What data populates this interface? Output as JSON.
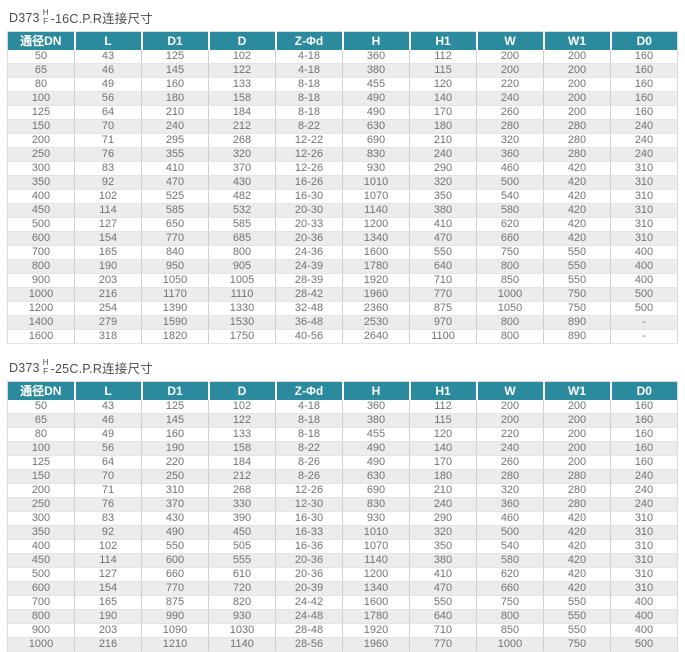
{
  "colors": {
    "header_bg": "#2b8a9d",
    "header_text": "#ffffff",
    "body_text": "#737373",
    "stripe": "#ececec",
    "title_text": "#4d4d4d"
  },
  "tables": [
    {
      "title_prefix": "D373",
      "title_sup": "H",
      "title_sub": "F",
      "title_suffix": "-16C.P.R连接尺寸",
      "columns": [
        "通径DN",
        "L",
        "D1",
        "D",
        "Z-Φd",
        "H",
        "H1",
        "W",
        "W1",
        "D0"
      ],
      "rows": [
        [
          "50",
          "43",
          "125",
          "102",
          "4-18",
          "360",
          "112",
          "200",
          "200",
          "160"
        ],
        [
          "65",
          "46",
          "145",
          "122",
          "4-18",
          "380",
          "115",
          "200",
          "200",
          "160"
        ],
        [
          "80",
          "49",
          "160",
          "133",
          "8-18",
          "455",
          "120",
          "220",
          "200",
          "160"
        ],
        [
          "100",
          "56",
          "180",
          "158",
          "8-18",
          "490",
          "140",
          "240",
          "200",
          "160"
        ],
        [
          "125",
          "64",
          "210",
          "184",
          "8-18",
          "490",
          "170",
          "260",
          "200",
          "160"
        ],
        [
          "150",
          "70",
          "240",
          "212",
          "8-22",
          "630",
          "180",
          "280",
          "280",
          "240"
        ],
        [
          "200",
          "71",
          "295",
          "268",
          "12-22",
          "690",
          "210",
          "320",
          "280",
          "240"
        ],
        [
          "250",
          "76",
          "355",
          "320",
          "12-26",
          "830",
          "240",
          "360",
          "280",
          "240"
        ],
        [
          "300",
          "83",
          "410",
          "370",
          "12-26",
          "930",
          "290",
          "460",
          "420",
          "310"
        ],
        [
          "350",
          "92",
          "470",
          "430",
          "16-26",
          "1010",
          "320",
          "500",
          "420",
          "310"
        ],
        [
          "400",
          "102",
          "525",
          "482",
          "16-30",
          "1070",
          "350",
          "540",
          "420",
          "310"
        ],
        [
          "450",
          "114",
          "585",
          "532",
          "20-30",
          "1140",
          "380",
          "580",
          "420",
          "310"
        ],
        [
          "500",
          "127",
          "650",
          "585",
          "20-33",
          "1200",
          "410",
          "620",
          "420",
          "310"
        ],
        [
          "600",
          "154",
          "770",
          "685",
          "20-36",
          "1340",
          "470",
          "660",
          "420",
          "310"
        ],
        [
          "700",
          "165",
          "840",
          "800",
          "24-36",
          "1600",
          "550",
          "750",
          "550",
          "400"
        ],
        [
          "800",
          "190",
          "950",
          "905",
          "24-39",
          "1780",
          "640",
          "800",
          "550",
          "400"
        ],
        [
          "900",
          "203",
          "1050",
          "1005",
          "28-39",
          "1920",
          "710",
          "850",
          "550",
          "400"
        ],
        [
          "1000",
          "216",
          "1170",
          "1110",
          "28-42",
          "1960",
          "770",
          "1000",
          "750",
          "500"
        ],
        [
          "1200",
          "254",
          "1390",
          "1330",
          "32-48",
          "2360",
          "875",
          "1050",
          "750",
          "500"
        ],
        [
          "1400",
          "279",
          "1590",
          "1530",
          "36-48",
          "2530",
          "970",
          "800",
          "890",
          "-"
        ],
        [
          "1600",
          "318",
          "1820",
          "1750",
          "40-56",
          "2640",
          "1100",
          "800",
          "890",
          "-"
        ]
      ]
    },
    {
      "title_prefix": "D373",
      "title_sup": "H",
      "title_sub": "F",
      "title_suffix": "-25C.P.R连接尺寸",
      "columns": [
        "通径DN",
        "L",
        "D1",
        "D",
        "Z-Φd",
        "H",
        "H1",
        "W",
        "W1",
        "D0"
      ],
      "rows": [
        [
          "50",
          "43",
          "125",
          "102",
          "4-18",
          "360",
          "112",
          "200",
          "200",
          "160"
        ],
        [
          "65",
          "46",
          "145",
          "122",
          "8-18",
          "380",
          "115",
          "200",
          "200",
          "160"
        ],
        [
          "80",
          "49",
          "160",
          "133",
          "8-18",
          "455",
          "120",
          "220",
          "200",
          "160"
        ],
        [
          "100",
          "56",
          "190",
          "158",
          "8-22",
          "490",
          "140",
          "240",
          "200",
          "160"
        ],
        [
          "125",
          "64",
          "220",
          "184",
          "8-26",
          "490",
          "170",
          "260",
          "200",
          "160"
        ],
        [
          "150",
          "70",
          "250",
          "212",
          "8-26",
          "630",
          "180",
          "280",
          "280",
          "240"
        ],
        [
          "200",
          "71",
          "310",
          "268",
          "12-26",
          "690",
          "210",
          "320",
          "280",
          "240"
        ],
        [
          "250",
          "76",
          "370",
          "330",
          "12-30",
          "830",
          "240",
          "360",
          "280",
          "240"
        ],
        [
          "300",
          "83",
          "430",
          "390",
          "16-30",
          "930",
          "290",
          "460",
          "420",
          "310"
        ],
        [
          "350",
          "92",
          "490",
          "450",
          "16-33",
          "1010",
          "320",
          "500",
          "420",
          "310"
        ],
        [
          "400",
          "102",
          "550",
          "505",
          "16-36",
          "1070",
          "350",
          "540",
          "420",
          "310"
        ],
        [
          "450",
          "114",
          "600",
          "555",
          "20-36",
          "1140",
          "380",
          "580",
          "420",
          "310"
        ],
        [
          "500",
          "127",
          "660",
          "610",
          "20-36",
          "1200",
          "410",
          "620",
          "420",
          "310"
        ],
        [
          "600",
          "154",
          "770",
          "720",
          "20-39",
          "1340",
          "470",
          "660",
          "420",
          "310"
        ],
        [
          "700",
          "165",
          "875",
          "820",
          "24-42",
          "1600",
          "550",
          "750",
          "550",
          "400"
        ],
        [
          "800",
          "190",
          "990",
          "930",
          "24-48",
          "1780",
          "640",
          "800",
          "550",
          "400"
        ],
        [
          "900",
          "203",
          "1090",
          "1030",
          "28-48",
          "1920",
          "710",
          "850",
          "550",
          "400"
        ],
        [
          "1000",
          "216",
          "1210",
          "1140",
          "28-56",
          "1960",
          "770",
          "1000",
          "750",
          "500"
        ]
      ]
    }
  ]
}
